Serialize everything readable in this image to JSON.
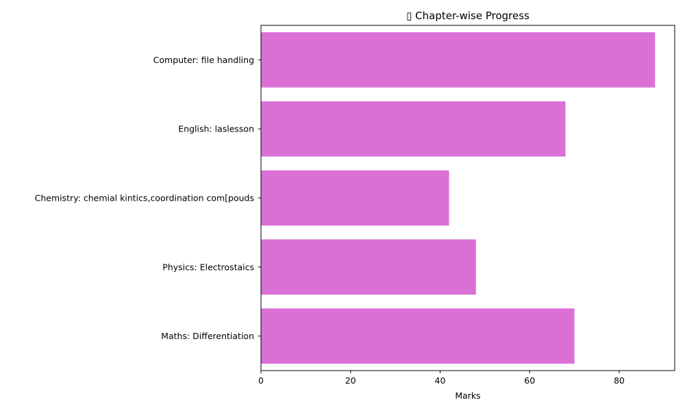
{
  "chart_data": {
    "type": "bar",
    "orientation": "horizontal",
    "title": "▯ Chapter-wise Progress",
    "xlabel": "Marks",
    "ylabel": "",
    "xlim": [
      0,
      92.4
    ],
    "x_ticks": [
      0,
      20,
      40,
      60,
      80
    ],
    "categories": [
      "Computer: file handling",
      "English: laslesson",
      "Chemistry: chemial kintics,coordination com[pouds",
      "Physics: Electrostaics",
      "Maths: Differentiation"
    ],
    "values": [
      88,
      68,
      42,
      48,
      70
    ],
    "bar_color": "#da70d6",
    "grid": false,
    "legend": "none"
  }
}
